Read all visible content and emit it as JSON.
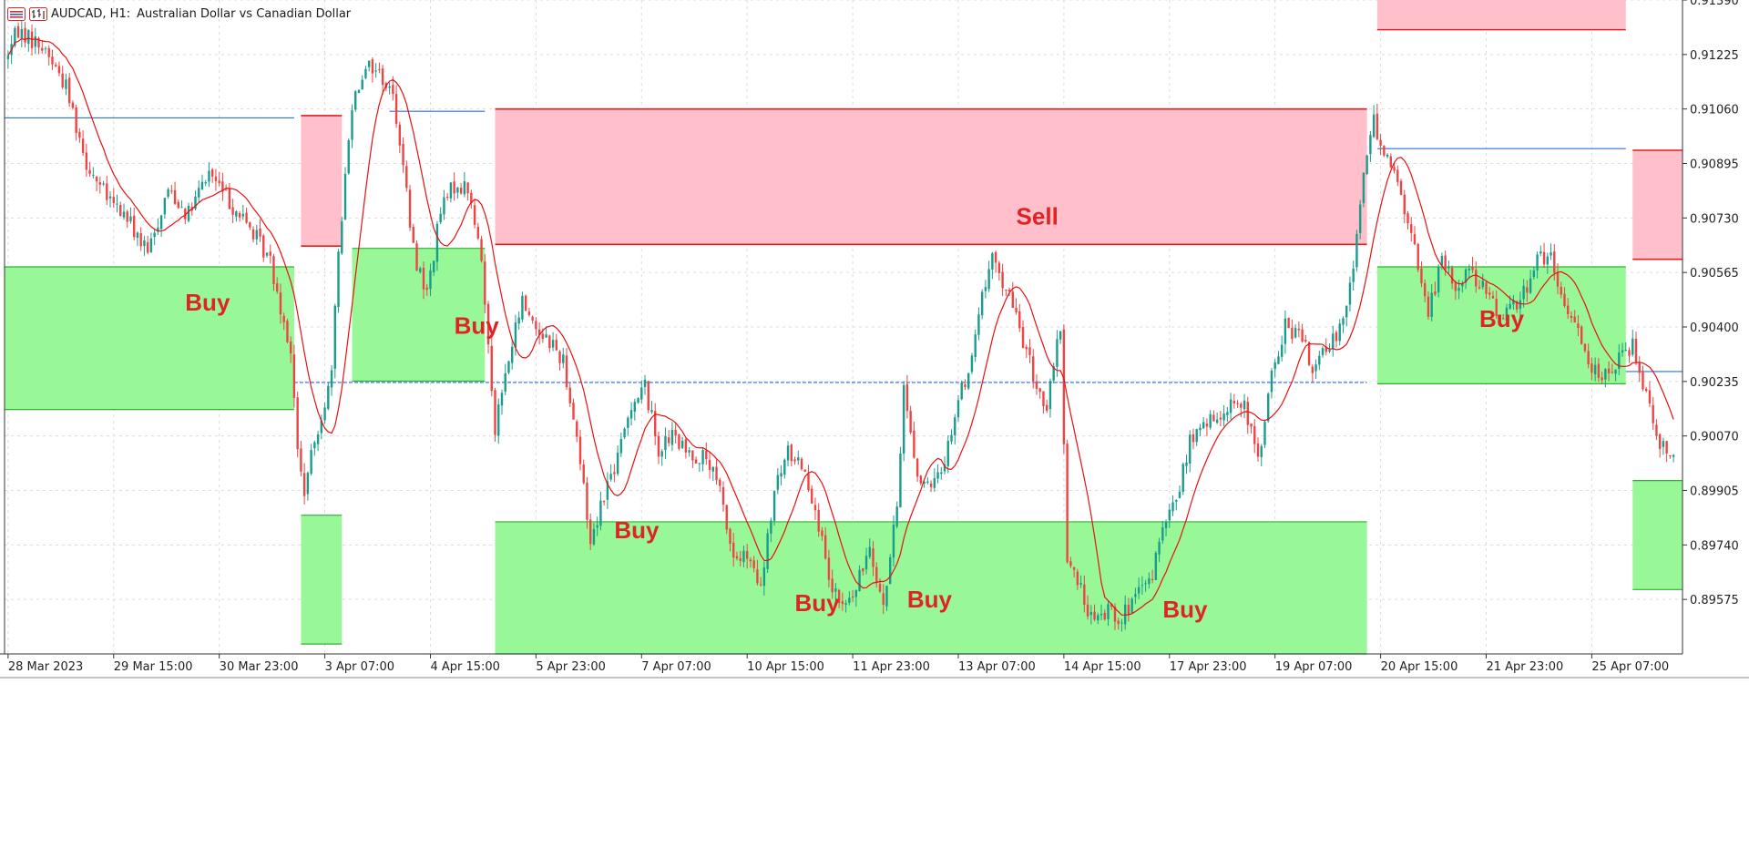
{
  "header": {
    "symbol": "AUDCAD, H1:",
    "description": "Australian Dollar vs Canadian Dollar"
  },
  "icons": [
    "chart-menu-icon",
    "bars-icon"
  ],
  "colors": {
    "bull": "#1a9c8c",
    "bear": "#ef4444",
    "buy_zone_fill": "#98f898",
    "buy_zone_edge": "#30b030",
    "sell_zone_fill": "#ffc0cb",
    "sell_zone_edge": "#e02020",
    "level_line": "#2b6fe0",
    "ma_line": "#e81010",
    "label": "#e02424"
  },
  "chart_data": {
    "type": "candlestick",
    "symbol": "AUDCAD",
    "timeframe": "H1",
    "ylim": [
      0.8941,
      0.9139
    ],
    "y_ticks": [
      "0.91390",
      "0.91225",
      "0.91060",
      "0.90895",
      "0.90730",
      "0.90565",
      "0.90400",
      "0.90235",
      "0.90070",
      "0.89905",
      "0.89740",
      "0.89575"
    ],
    "x_ticks": [
      {
        "bar": 0,
        "label": "28 Mar 2023"
      },
      {
        "bar": 31,
        "label": "29 Mar 15:00"
      },
      {
        "bar": 62,
        "label": "30 Mar 23:00"
      },
      {
        "bar": 93,
        "label": "3 Apr 07:00"
      },
      {
        "bar": 124,
        "label": "4 Apr 15:00"
      },
      {
        "bar": 155,
        "label": "5 Apr 23:00"
      },
      {
        "bar": 186,
        "label": "7 Apr 07:00"
      },
      {
        "bar": 217,
        "label": "10 Apr 15:00"
      },
      {
        "bar": 248,
        "label": "11 Apr 23:00"
      },
      {
        "bar": 279,
        "label": "13 Apr 07:00"
      },
      {
        "bar": 310,
        "label": "14 Apr 15:00"
      },
      {
        "bar": 341,
        "label": "17 Apr 23:00"
      },
      {
        "bar": 372,
        "label": "19 Apr 07:00"
      },
      {
        "bar": 403,
        "label": "20 Apr 15:00"
      },
      {
        "bar": 434,
        "label": "21 Apr 23:00"
      },
      {
        "bar": 465,
        "label": "25 Apr 07:00"
      }
    ],
    "bars_visible": 490,
    "price_path": [
      [
        0,
        0.9121
      ],
      [
        4,
        0.913
      ],
      [
        8,
        0.9127
      ],
      [
        12,
        0.9124
      ],
      [
        18,
        0.9113
      ],
      [
        24,
        0.909
      ],
      [
        30,
        0.9079
      ],
      [
        36,
        0.9073
      ],
      [
        42,
        0.9062
      ],
      [
        48,
        0.9082
      ],
      [
        54,
        0.9074
      ],
      [
        60,
        0.9087
      ],
      [
        66,
        0.9078
      ],
      [
        72,
        0.907
      ],
      [
        78,
        0.906
      ],
      [
        84,
        0.9033
      ],
      [
        86,
        0.9002
      ],
      [
        88,
        0.899
      ],
      [
        92,
        0.901
      ],
      [
        96,
        0.9025
      ],
      [
        98,
        0.9063
      ],
      [
        102,
        0.9108
      ],
      [
        106,
        0.912
      ],
      [
        110,
        0.9117
      ],
      [
        114,
        0.911
      ],
      [
        116,
        0.9097
      ],
      [
        120,
        0.9063
      ],
      [
        124,
        0.905
      ],
      [
        128,
        0.9075
      ],
      [
        132,
        0.9083
      ],
      [
        136,
        0.9082
      ],
      [
        140,
        0.906
      ],
      [
        144,
        0.901
      ],
      [
        148,
        0.903
      ],
      [
        152,
        0.9048
      ],
      [
        156,
        0.904
      ],
      [
        160,
        0.9036
      ],
      [
        164,
        0.903
      ],
      [
        168,
        0.9007
      ],
      [
        172,
        0.8975
      ],
      [
        176,
        0.899
      ],
      [
        180,
        0.9
      ],
      [
        184,
        0.9017
      ],
      [
        188,
        0.9022
      ],
      [
        192,
        0.9003
      ],
      [
        196,
        0.9007
      ],
      [
        200,
        0.9002
      ],
      [
        206,
        0.9
      ],
      [
        210,
        0.899
      ],
      [
        214,
        0.897
      ],
      [
        218,
        0.897
      ],
      [
        222,
        0.896
      ],
      [
        226,
        0.899
      ],
      [
        230,
        0.9002
      ],
      [
        234,
        0.8999
      ],
      [
        238,
        0.8986
      ],
      [
        242,
        0.8962
      ],
      [
        246,
        0.8955
      ],
      [
        250,
        0.896
      ],
      [
        254,
        0.8975
      ],
      [
        258,
        0.8955
      ],
      [
        262,
        0.8985
      ],
      [
        264,
        0.9022
      ],
      [
        268,
        0.8995
      ],
      [
        272,
        0.899
      ],
      [
        276,
        0.9
      ],
      [
        280,
        0.9018
      ],
      [
        284,
        0.903
      ],
      [
        286,
        0.9045
      ],
      [
        290,
        0.906
      ],
      [
        294,
        0.9052
      ],
      [
        298,
        0.904
      ],
      [
        302,
        0.9025
      ],
      [
        306,
        0.9015
      ],
      [
        310,
        0.904
      ],
      [
        312,
        0.897
      ],
      [
        316,
        0.896
      ],
      [
        320,
        0.895
      ],
      [
        324,
        0.8955
      ],
      [
        328,
        0.8952
      ],
      [
        332,
        0.8958
      ],
      [
        336,
        0.8962
      ],
      [
        340,
        0.8978
      ],
      [
        344,
        0.8988
      ],
      [
        348,
        0.9005
      ],
      [
        352,
        0.901
      ],
      [
        356,
        0.9012
      ],
      [
        360,
        0.9018
      ],
      [
        364,
        0.9015
      ],
      [
        368,
        0.9
      ],
      [
        372,
        0.9025
      ],
      [
        376,
        0.904
      ],
      [
        380,
        0.9038
      ],
      [
        384,
        0.9028
      ],
      [
        388,
        0.9032
      ],
      [
        392,
        0.904
      ],
      [
        396,
        0.9058
      ],
      [
        399,
        0.9088
      ],
      [
        402,
        0.9102
      ],
      [
        406,
        0.9092
      ],
      [
        410,
        0.908
      ],
      [
        414,
        0.9063
      ],
      [
        418,
        0.9045
      ],
      [
        422,
        0.906
      ],
      [
        426,
        0.9052
      ],
      [
        430,
        0.9058
      ],
      [
        434,
        0.9052
      ],
      [
        438,
        0.9044
      ],
      [
        442,
        0.9046
      ],
      [
        446,
        0.905
      ],
      [
        450,
        0.9062
      ],
      [
        454,
        0.906
      ],
      [
        458,
        0.9045
      ],
      [
        462,
        0.904
      ],
      [
        466,
        0.9028
      ],
      [
        470,
        0.9025
      ],
      [
        474,
        0.903
      ],
      [
        478,
        0.9035
      ],
      [
        482,
        0.902
      ],
      [
        486,
        0.9005
      ],
      [
        489,
        0.9003
      ]
    ],
    "ma_period": 12,
    "zones": [
      {
        "type": "buy",
        "bar_from": -2,
        "bar_to": 84,
        "top": 0.90582,
        "bottom": 0.9015
      },
      {
        "type": "sell",
        "bar_from": 86,
        "bar_to": 98,
        "top": 0.9104,
        "bottom": 0.90645
      },
      {
        "type": "buy",
        "bar_from": 86,
        "bar_to": 98,
        "top": 0.8983,
        "bottom": 0.8944
      },
      {
        "type": "buy",
        "bar_from": 101,
        "bar_to": 140,
        "top": 0.90638,
        "bottom": 0.90236
      },
      {
        "type": "sell",
        "bar_from": 143,
        "bar_to": 399,
        "top": 0.9106,
        "bottom": 0.9065
      },
      {
        "type": "buy",
        "bar_from": 143,
        "bar_to": 399,
        "top": 0.8981,
        "bottom": 0.8941
      },
      {
        "type": "sell",
        "bar_from": 402,
        "bar_to": 475,
        "top": 0.914,
        "bottom": 0.913
      },
      {
        "type": "buy",
        "bar_from": 402,
        "bar_to": 475,
        "top": 0.90582,
        "bottom": 0.90228
      },
      {
        "type": "sell",
        "bar_from": 477,
        "bar_to": 492,
        "top": 0.90935,
        "bottom": 0.90605
      },
      {
        "type": "buy",
        "bar_from": 477,
        "bar_to": 492,
        "top": 0.89935,
        "bottom": 0.89605
      }
    ],
    "levels": [
      {
        "bar_from": -2,
        "bar_to": 84,
        "price": 0.91033,
        "style": "solid"
      },
      {
        "bar_from": 112,
        "bar_to": 140,
        "price": 0.91053,
        "style": "solid"
      },
      {
        "bar_from": 84,
        "bar_to": 399,
        "price": 0.90232,
        "style": "dashed"
      },
      {
        "bar_from": 402,
        "bar_to": 475,
        "price": 0.9094,
        "style": "solid"
      },
      {
        "bar_from": 475,
        "bar_to": 492,
        "price": 0.90265,
        "style": "solid"
      }
    ],
    "annotations": [
      {
        "text": "Buy",
        "bar": 52,
        "price": 0.9045
      },
      {
        "text": "Buy",
        "bar": 131,
        "price": 0.9038
      },
      {
        "text": "Buy",
        "bar": 178,
        "price": 0.8976
      },
      {
        "text": "Buy",
        "bar": 231,
        "price": 0.8954
      },
      {
        "text": "Buy",
        "bar": 264,
        "price": 0.8955
      },
      {
        "text": "Sell",
        "bar": 296,
        "price": 0.9071
      },
      {
        "text": "Buy",
        "bar": 339,
        "price": 0.8952
      },
      {
        "text": "Buy",
        "bar": 432,
        "price": 0.904
      }
    ]
  }
}
